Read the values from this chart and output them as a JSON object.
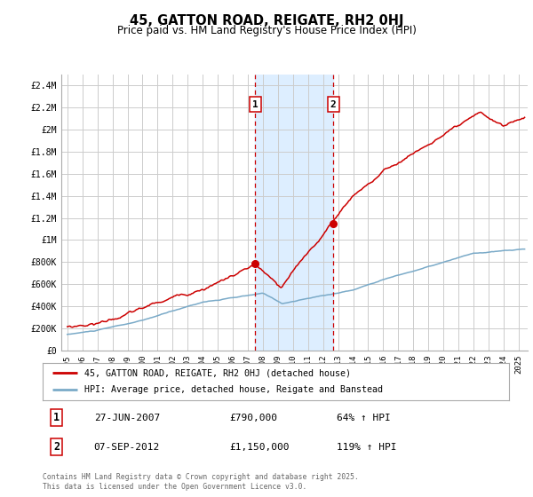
{
  "title": "45, GATTON ROAD, REIGATE, RH2 0HJ",
  "subtitle": "Price paid vs. HM Land Registry's House Price Index (HPI)",
  "legend_line1": "45, GATTON ROAD, REIGATE, RH2 0HJ (detached house)",
  "legend_line2": "HPI: Average price, detached house, Reigate and Banstead",
  "footer": "Contains HM Land Registry data © Crown copyright and database right 2025.\nThis data is licensed under the Open Government Licence v3.0.",
  "annotation1_date": "27-JUN-2007",
  "annotation1_price": "£790,000",
  "annotation1_hpi": "64% ↑ HPI",
  "annotation2_date": "07-SEP-2012",
  "annotation2_price": "£1,150,000",
  "annotation2_hpi": "119% ↑ HPI",
  "sale1_x": 2007.5,
  "sale1_y": 790000,
  "sale2_x": 2012.67,
  "sale2_y": 1150000,
  "vline1_x": 2007.5,
  "vline2_x": 2012.67,
  "shading_x1": 2007.5,
  "shading_x2": 2012.67,
  "red_color": "#cc0000",
  "blue_color": "#7aaac8",
  "shading_color": "#ddeeff",
  "vline_color": "#cc0000",
  "background_color": "#ffffff",
  "grid_color": "#cccccc",
  "ylim": [
    0,
    2500000
  ],
  "xlim_start": 1994.6,
  "xlim_end": 2025.6,
  "ann_label_color": "#cc0000"
}
